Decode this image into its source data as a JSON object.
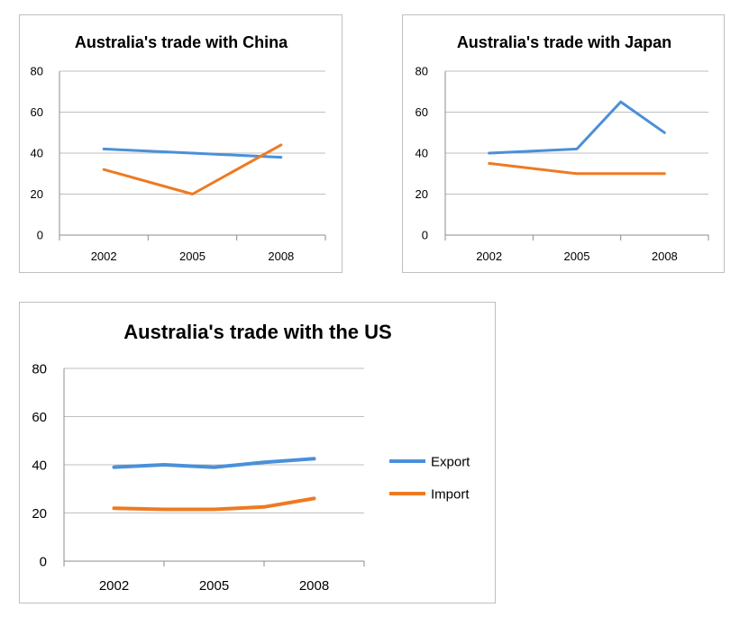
{
  "colors": {
    "export": "#4a90d9",
    "import": "#ee7a22",
    "gridline": "#bfbfbf",
    "axis": "#8c8c8c"
  },
  "chart_data": [
    {
      "type": "line",
      "title": "Australia's trade with China",
      "x": [
        2002,
        2005,
        2008
      ],
      "x_tick_labels": [
        "2002",
        "2005",
        "2008"
      ],
      "y_ticks": [
        "0",
        "20",
        "40",
        "60",
        "80"
      ],
      "ylim": [
        0,
        80
      ],
      "grid": true,
      "legend": false,
      "series": [
        {
          "key": "export",
          "x": [
            2002,
            2005,
            2008
          ],
          "values": [
            42,
            40,
            38
          ]
        },
        {
          "key": "import",
          "x": [
            2002,
            2005,
            2008
          ],
          "values": [
            32,
            20,
            44
          ]
        }
      ]
    },
    {
      "type": "line",
      "title": "Australia's trade with Japan",
      "x": [
        2002,
        2005,
        2008
      ],
      "x_tick_labels": [
        "2002",
        "2005",
        "2008"
      ],
      "y_ticks": [
        "0",
        "20",
        "40",
        "60",
        "80"
      ],
      "ylim": [
        0,
        80
      ],
      "grid": true,
      "legend": false,
      "series": [
        {
          "key": "export",
          "x": [
            2002,
            2005,
            2006.5,
            2008
          ],
          "values": [
            40,
            42,
            65,
            50
          ]
        },
        {
          "key": "import",
          "x": [
            2002,
            2005,
            2008
          ],
          "values": [
            35,
            30,
            30
          ]
        }
      ]
    },
    {
      "type": "line",
      "title": "Australia's trade with the US",
      "x": [
        2002,
        2005,
        2008
      ],
      "x_tick_labels": [
        "2002",
        "2005",
        "2008"
      ],
      "y_ticks": [
        "0",
        "20",
        "40",
        "60",
        "80"
      ],
      "ylim": [
        0,
        80
      ],
      "grid": true,
      "legend": "right",
      "series": [
        {
          "key": "export",
          "name": "Export",
          "x": [
            2002,
            2003.5,
            2005,
            2006.5,
            2008
          ],
          "values": [
            39,
            40,
            39,
            41,
            42.5
          ]
        },
        {
          "key": "import",
          "name": "Import",
          "x": [
            2002,
            2003.5,
            2005,
            2006.5,
            2008
          ],
          "values": [
            22,
            21.5,
            21.5,
            22.5,
            26
          ]
        }
      ]
    }
  ]
}
